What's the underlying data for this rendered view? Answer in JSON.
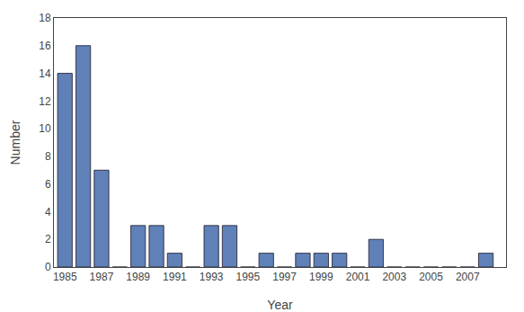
{
  "chart_data": {
    "type": "bar",
    "x": [
      1985,
      1986,
      1987,
      1988,
      1989,
      1990,
      1991,
      1992,
      1993,
      1994,
      1995,
      1996,
      1997,
      1998,
      1999,
      2000,
      2001,
      2002,
      2003,
      2004,
      2005,
      2006,
      2007,
      2008
    ],
    "values": [
      14,
      16,
      7,
      0,
      3,
      3,
      1,
      0,
      3,
      3,
      0,
      1,
      0,
      1,
      1,
      1,
      0,
      2,
      0,
      0,
      0,
      0,
      0,
      1
    ],
    "color": "#6080B8",
    "xlabel": "Year",
    "ylabel": "Number",
    "xlim": [
      1984.4,
      2009.1
    ],
    "xticks": [
      1985,
      1987,
      1989,
      1991,
      1993,
      1995,
      1997,
      1999,
      2001,
      2003,
      2005,
      2007
    ],
    "ylim": [
      0,
      18
    ],
    "yticks": [
      0,
      2,
      4,
      6,
      8,
      10,
      12,
      14,
      16,
      18
    ],
    "grid": false
  }
}
